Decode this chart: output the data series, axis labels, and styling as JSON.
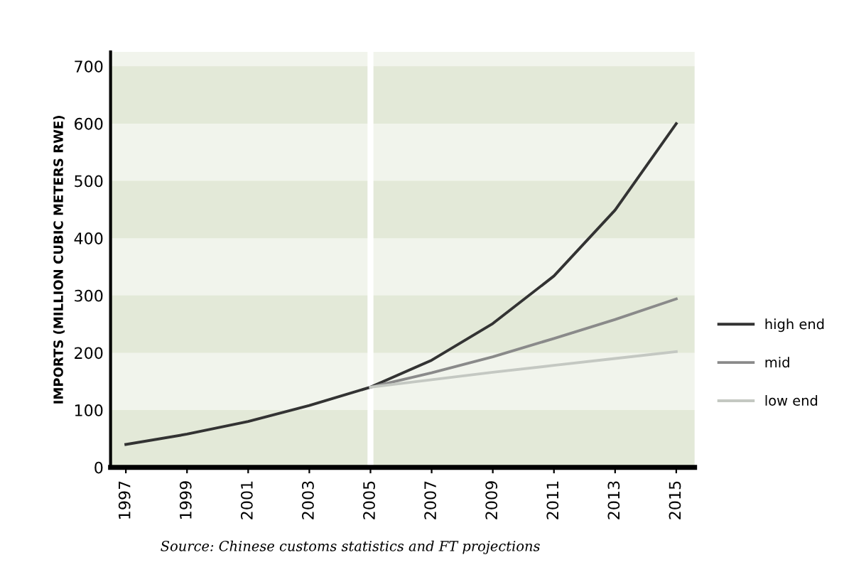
{
  "chart_data": {
    "type": "line",
    "ylabel": "IMPORTS (MILLION CUBIC METERS RWE)",
    "x": [
      1997,
      1999,
      2001,
      2003,
      2005,
      2007,
      2009,
      2011,
      2013,
      2015
    ],
    "series": [
      {
        "name": "high end",
        "color": "#333333",
        "values": [
          40,
          58,
          80,
          108,
          140,
          187,
          251,
          334,
          449,
          600
        ]
      },
      {
        "name": "mid",
        "color": "#8a8a8a",
        "values": [
          null,
          null,
          null,
          null,
          140,
          165,
          193,
          225,
          258,
          294
        ]
      },
      {
        "name": "low end",
        "color": "#c4c8c2",
        "values": [
          null,
          null,
          null,
          null,
          140,
          153,
          166,
          178,
          190,
          202
        ]
      }
    ],
    "xlim": [
      1996.5,
      2015.6
    ],
    "xticks": [
      1997,
      1999,
      2001,
      2003,
      2005,
      2007,
      2009,
      2011,
      2013,
      2015
    ],
    "ylim": [
      0,
      725
    ],
    "yticks": [
      0,
      100,
      200,
      300,
      400,
      500,
      600,
      700
    ],
    "bands": [
      {
        "axis": "y",
        "from": 0,
        "to": 100,
        "color": "#e3e9d8"
      },
      {
        "axis": "y",
        "from": 200,
        "to": 300,
        "color": "#e3e9d8"
      },
      {
        "axis": "y",
        "from": 400,
        "to": 500,
        "color": "#e3e9d8"
      },
      {
        "axis": "y",
        "from": 600,
        "to": 700,
        "color": "#e3e9d8"
      }
    ],
    "ref_lines": [
      {
        "axis": "x",
        "value": 2005,
        "label": null,
        "color": "#ffffff"
      }
    ],
    "legend": "right",
    "annotations": [
      "Source: Chinese customs statistics and FT projections"
    ]
  }
}
